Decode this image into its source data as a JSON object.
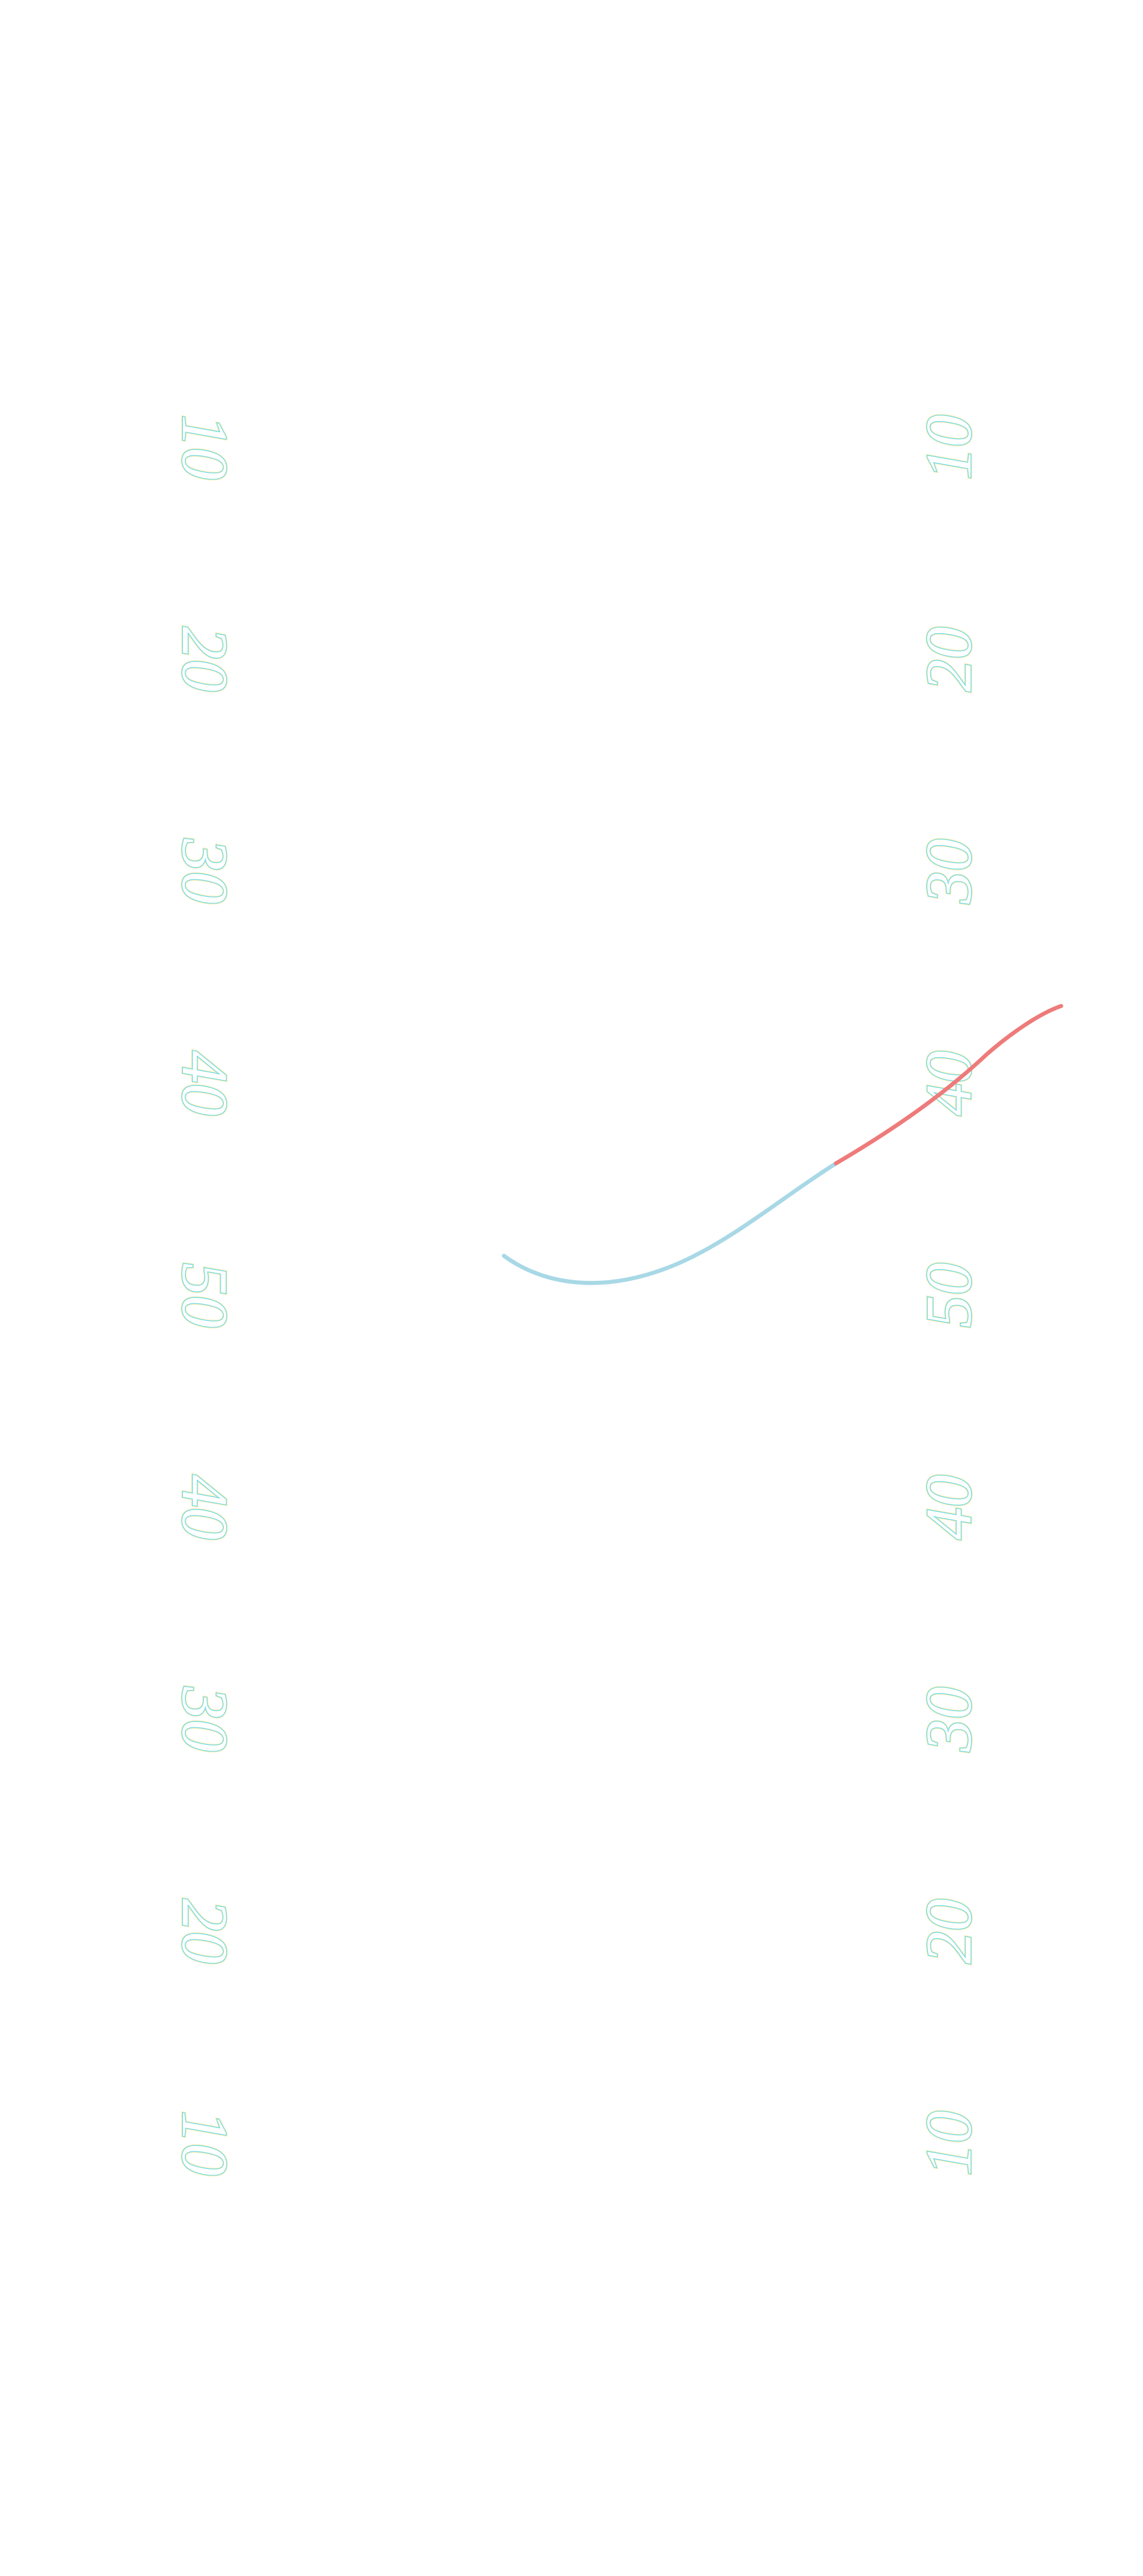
{
  "yard_lines": {
    "left": [
      "10",
      "20",
      "30",
      "40",
      "50",
      "40",
      "30",
      "20",
      "10"
    ],
    "right": [
      "10",
      "20",
      "30",
      "40",
      "50",
      "40",
      "30",
      "20",
      "10"
    ]
  },
  "trajectory": {
    "segments": [
      {
        "name": "segment-blue",
        "color": "#a8d8e6"
      },
      {
        "name": "segment-red",
        "color": "#ee7b7b"
      }
    ]
  },
  "colors": {
    "background": "#ffffff",
    "label_stroke": "#5fd8e8",
    "label_glow": "#f5ecb0"
  }
}
